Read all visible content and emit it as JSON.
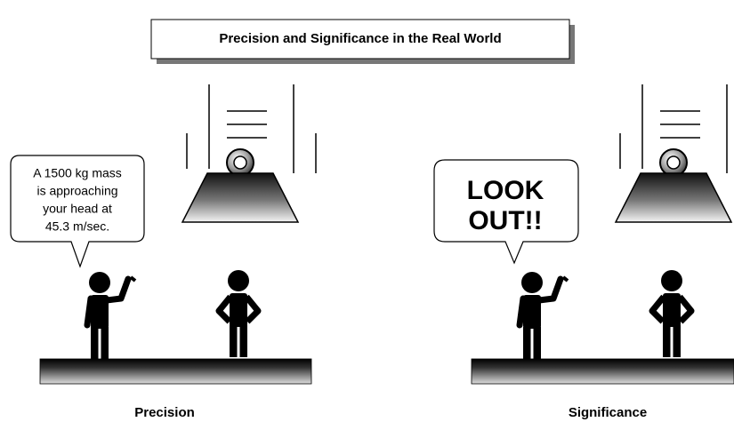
{
  "title": "Precision and Significance in the Real World",
  "panels": [
    {
      "bubble": [
        "A 1500 kg mass",
        "is approaching",
        "your head at",
        "45.3 m/sec."
      ],
      "caption": "Precision"
    },
    {
      "bubble": [
        "LOOK",
        "OUT!!"
      ],
      "caption": "Significance"
    }
  ]
}
